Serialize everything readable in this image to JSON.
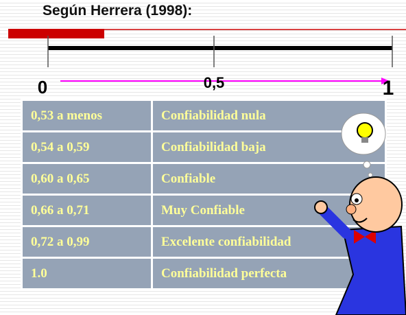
{
  "header": {
    "title": "Según Herrera (1998):"
  },
  "scale": {
    "labels": [
      "0",
      "0,5",
      "1"
    ]
  },
  "table": {
    "rows": [
      [
        "0,53 a menos",
        "Confiabilidad nula"
      ],
      [
        "0,54 a 0,59",
        "Confiabilidad baja"
      ],
      [
        "0,60 a 0,65",
        "Confiable"
      ],
      [
        "0,66 a 0,71",
        "Muy Confiable"
      ],
      [
        "0,72 a 0,99",
        "Excelente confiabilidad"
      ],
      [
        "1.0",
        "Confiabilidad perfecta"
      ]
    ]
  }
}
